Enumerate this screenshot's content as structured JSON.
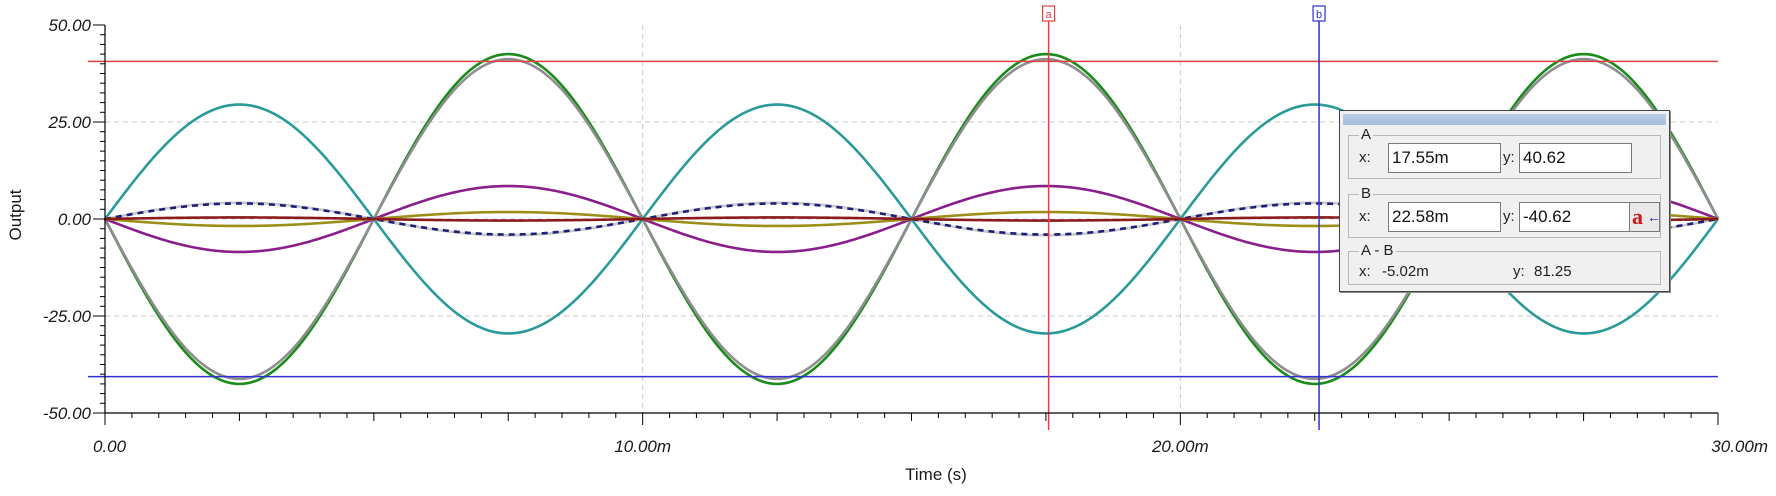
{
  "chart_data": {
    "type": "line",
    "xlabel": "Time (s)",
    "ylabel": "Output",
    "xlim": [
      0,
      0.03
    ],
    "ylim": [
      -50,
      50
    ],
    "x_ticks": [
      {
        "value": 0,
        "label": "0.00"
      },
      {
        "value": 0.01,
        "label": "10.00m"
      },
      {
        "value": 0.02,
        "label": "20.00m"
      },
      {
        "value": 0.03,
        "label": "30.00m"
      }
    ],
    "y_ticks": [
      {
        "value": 50,
        "label": "50.00"
      },
      {
        "value": 25,
        "label": "25.00"
      },
      {
        "value": 0,
        "label": "0.00"
      },
      {
        "value": -25,
        "label": "-25.00"
      },
      {
        "value": -50,
        "label": "-50.00"
      }
    ],
    "grid": true,
    "legend": "none",
    "signal": {
      "shape": "sine",
      "frequency_hz": 100,
      "period_s": 0.01,
      "x_start": 0,
      "x_end": 0.03
    },
    "series": [
      {
        "color": "#1a8c1a",
        "amplitude": -42.5
      },
      {
        "color": "#8e8e8e",
        "amplitude": -41.2
      },
      {
        "color": "#2a9a9a",
        "amplitude": 29.5
      },
      {
        "color": "#8a1e8a",
        "amplitude": -8.5
      },
      {
        "color": "#c9c9c9",
        "amplitude": 4.2
      },
      {
        "color": "#1e1e78",
        "amplitude": 4.0,
        "dashed": true
      },
      {
        "color": "#9b8f1a",
        "amplitude": -1.8
      },
      {
        "color": "#8b1a1a",
        "amplitude": 0.4
      }
    ],
    "reference_lines": [
      {
        "value": 40.62,
        "color": "#e04040"
      },
      {
        "value": -40.62,
        "color": "#3030d0"
      }
    ],
    "cursors": [
      {
        "label": "a",
        "x": 0.01755,
        "color": "#e04040"
      },
      {
        "label": "b",
        "x": 0.02258,
        "color": "#3030d0"
      }
    ]
  },
  "readout": {
    "a_title": "A",
    "b_title": "B",
    "diff_title": "A - B",
    "x_label": "x:",
    "y_label": "y:",
    "a_x": "17.55m",
    "a_y": "40.62",
    "b_x": "22.58m",
    "b_y": "-40.62",
    "diff_x": "-5.02m",
    "diff_y": "81.25",
    "swap_letter": "a",
    "swap_arrow": "←"
  }
}
